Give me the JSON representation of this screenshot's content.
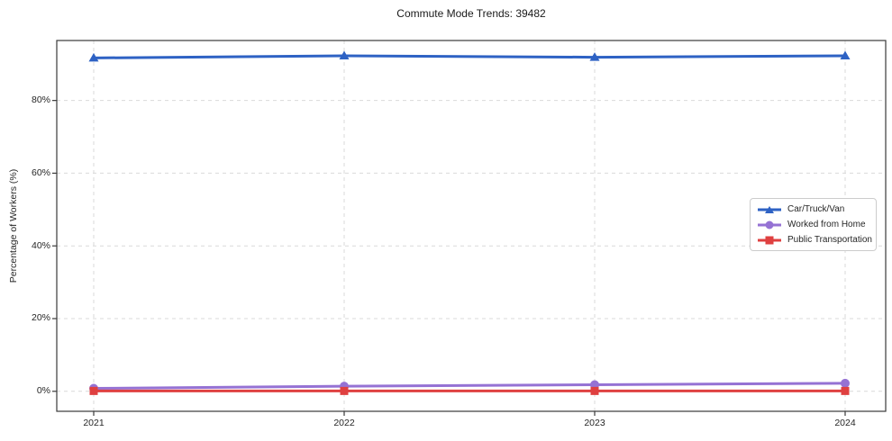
{
  "chart_data": {
    "type": "line",
    "title": "Commute Mode Trends: 39482",
    "ylabel": "Percentage of Workers (%)",
    "xlabel": "",
    "x_labels": [
      "2021",
      "2022",
      "2023",
      "2024"
    ],
    "yticks": [
      0,
      20,
      40,
      60,
      80
    ],
    "ytick_labels": [
      "0%",
      "20%",
      "40%",
      "60%",
      "80%"
    ],
    "ylim": [
      -5.5,
      96.5
    ],
    "grid": "dashed-both-axes",
    "legend_position": "center-right",
    "colors": {
      "grid": "#d9d9d9",
      "axis": "#3a3a3a",
      "background": "#ffffff"
    },
    "series": [
      {
        "name": "Car/Truck/Van",
        "marker": "triangle",
        "color": "#2e62c4",
        "values": [
          91.7,
          92.3,
          91.9,
          92.3
        ]
      },
      {
        "name": "Worked from Home",
        "marker": "circle",
        "color": "#9572d4",
        "values": [
          0.8,
          1.4,
          1.8,
          2.2
        ]
      },
      {
        "name": "Public Transportation",
        "marker": "square",
        "color": "#df4040",
        "values": [
          0.1,
          0.1,
          0.1,
          0.1
        ]
      }
    ]
  }
}
